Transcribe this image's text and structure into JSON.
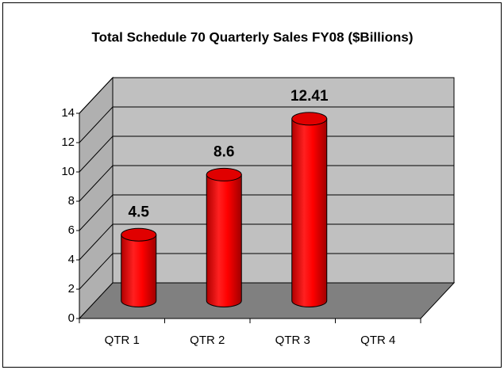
{
  "chart_data": {
    "type": "bar3d",
    "title": "Total Schedule 70 Quarterly Sales FY08 ($Billions)",
    "categories": [
      "QTR 1",
      "QTR 2",
      "QTR 3",
      "QTR 4"
    ],
    "values": [
      4.5,
      8.6,
      12.41,
      null
    ],
    "color": "#ff0000",
    "ylim": [
      0,
      14
    ],
    "yticks": [
      0,
      2,
      4,
      6,
      8,
      10,
      12,
      14
    ],
    "grid": true
  }
}
